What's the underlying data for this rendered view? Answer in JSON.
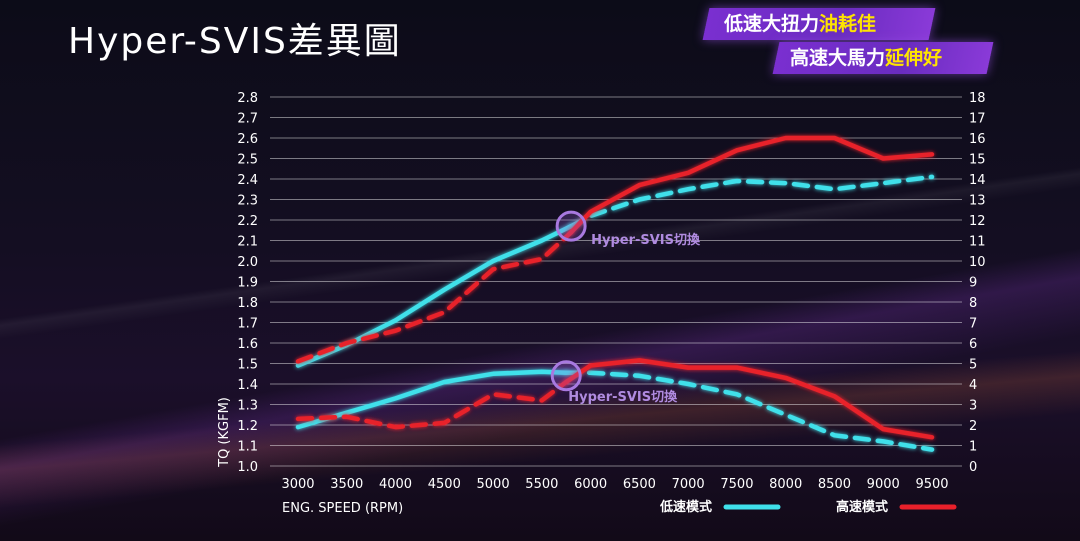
{
  "page": {
    "title": "Hyper-SVIS差異圖",
    "banners": [
      {
        "text": "低速大扭力",
        "highlight": "油耗佳"
      },
      {
        "text": "高速大馬力",
        "highlight": "延伸好"
      }
    ]
  },
  "chart_data": {
    "type": "line",
    "xlabel": "ENG. SPEED (RPM)",
    "ylabel": "TQ (KGFM)",
    "x": [
      3000,
      3500,
      4000,
      4500,
      5000,
      5500,
      6000,
      6500,
      7000,
      7500,
      8000,
      8500,
      9000,
      9500
    ],
    "y_left": {
      "min": 1.0,
      "max": 2.8,
      "step": 0.1
    },
    "y_right": {
      "min": 0,
      "max": 18,
      "step": 1
    },
    "grid": true,
    "legend_placement": "bottom-right",
    "annotations": [
      {
        "text": "Hyper-SVIS切換",
        "x": 5800,
        "y": 2.17,
        "axis": "left"
      },
      {
        "text": "Hyper-SVIS切換",
        "x": 5750,
        "y": 4.4,
        "axis": "right"
      }
    ],
    "series": [
      {
        "name": "低速模式",
        "color": "#3fe0ea",
        "axis": "left",
        "style": "solid",
        "x": [
          3000,
          3500,
          4000,
          4500,
          5000,
          5500,
          5800
        ],
        "values": [
          1.49,
          1.59,
          1.71,
          1.86,
          2.0,
          2.1,
          2.17
        ]
      },
      {
        "name": "低速模式",
        "color": "#3fe0ea",
        "axis": "left",
        "style": "dashed",
        "x": [
          5800,
          6000,
          6500,
          7000,
          7500,
          8000,
          8500,
          9000,
          9500
        ],
        "values": [
          2.17,
          2.22,
          2.3,
          2.35,
          2.39,
          2.38,
          2.35,
          2.38,
          2.41
        ]
      },
      {
        "name": "高速模式",
        "color": "#e8202a",
        "axis": "left",
        "style": "dashed",
        "x": [
          3000,
          3500,
          4000,
          4500,
          5000,
          5500,
          5800
        ],
        "values": [
          1.51,
          1.6,
          1.66,
          1.75,
          1.96,
          2.01,
          2.14
        ]
      },
      {
        "name": "高速模式",
        "color": "#e8202a",
        "axis": "left",
        "style": "solid",
        "x": [
          5800,
          6000,
          6500,
          7000,
          7500,
          8000,
          8500,
          9000,
          9500
        ],
        "values": [
          2.14,
          2.24,
          2.37,
          2.43,
          2.54,
          2.6,
          2.6,
          2.5,
          2.52
        ]
      },
      {
        "name": "低速模式",
        "color": "#3fe0ea",
        "axis": "right",
        "style": "solid",
        "x": [
          3000,
          3500,
          4000,
          4500,
          5000,
          5500,
          5750
        ],
        "values": [
          1.9,
          2.6,
          3.3,
          4.1,
          4.5,
          4.6,
          4.55
        ]
      },
      {
        "name": "低速模式",
        "color": "#3fe0ea",
        "axis": "right",
        "style": "dashed",
        "x": [
          5750,
          6000,
          6500,
          7000,
          7500,
          8000,
          8500,
          9000,
          9500
        ],
        "values": [
          4.55,
          4.55,
          4.4,
          4.0,
          3.5,
          2.5,
          1.5,
          1.2,
          0.8
        ]
      },
      {
        "name": "高速模式",
        "color": "#e8202a",
        "axis": "right",
        "style": "dashed",
        "x": [
          3000,
          3500,
          4000,
          4500,
          5000,
          5500,
          5750
        ],
        "values": [
          2.3,
          2.4,
          1.9,
          2.1,
          3.5,
          3.2,
          4.1
        ]
      },
      {
        "name": "高速模式",
        "color": "#e8202a",
        "axis": "right",
        "style": "solid",
        "x": [
          5750,
          6000,
          6500,
          7000,
          7500,
          8000,
          8500,
          9000,
          9500
        ],
        "values": [
          4.1,
          4.9,
          5.15,
          4.8,
          4.8,
          4.3,
          3.4,
          1.8,
          1.4
        ]
      }
    ]
  }
}
